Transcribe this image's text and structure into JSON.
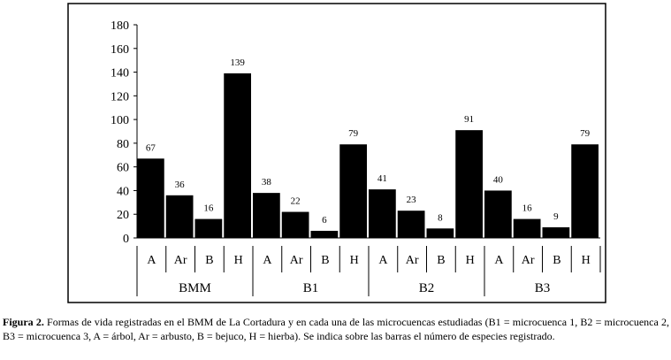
{
  "chart_data": {
    "type": "bar",
    "ylim": [
      0,
      180
    ],
    "yticks": [
      0,
      20,
      40,
      60,
      80,
      100,
      120,
      140,
      160,
      180
    ],
    "grid": false,
    "groups": [
      {
        "name": "BMM",
        "categories": [
          "A",
          "Ar",
          "B",
          "H"
        ],
        "values": [
          67,
          36,
          16,
          139
        ]
      },
      {
        "name": "B1",
        "categories": [
          "A",
          "Ar",
          "B",
          "H"
        ],
        "values": [
          38,
          22,
          6,
          79
        ]
      },
      {
        "name": "B2",
        "categories": [
          "A",
          "Ar",
          "B",
          "H"
        ],
        "values": [
          41,
          23,
          8,
          91
        ]
      },
      {
        "name": "B3",
        "categories": [
          "A",
          "Ar",
          "B",
          "H"
        ],
        "values": [
          40,
          16,
          9,
          79
        ]
      }
    ],
    "bar_color": "#000000",
    "data_labels": true
  },
  "caption": {
    "label": "Figura 2.",
    "text": " Formas de vida registradas en el BMM de La Cortadura y en cada una de las microcuencas estudiadas (B1 = microcuenca 1, B2 = microcuenca 2, B3 = microcuenca 3, A = árbol, Ar = arbusto, B = bejuco, H = hierba). Se indica sobre las barras el número de especies registrado."
  }
}
